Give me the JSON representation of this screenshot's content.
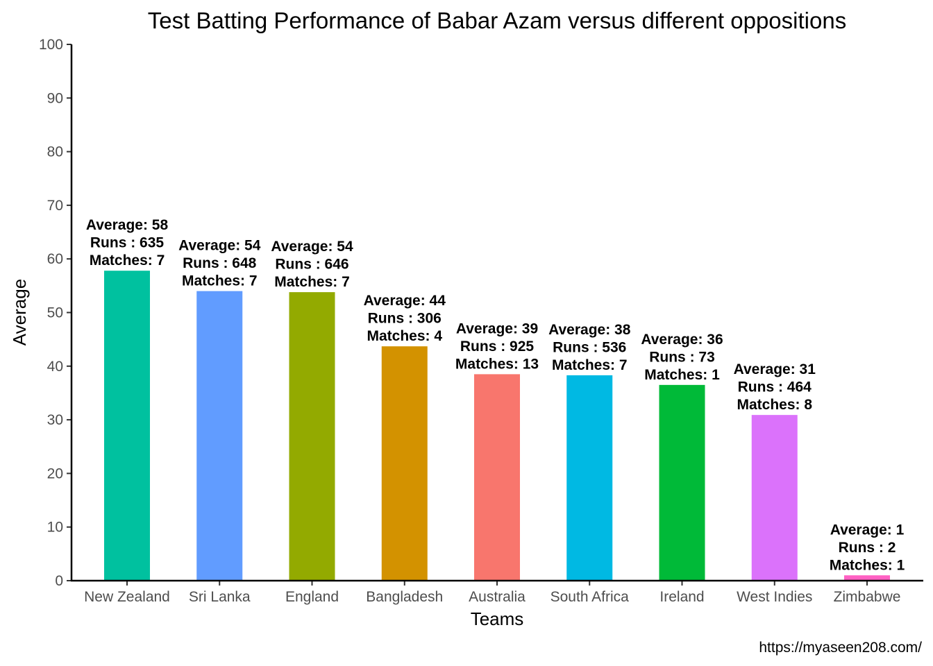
{
  "chart_data": {
    "type": "bar",
    "title": "Test Batting Performance of Babar Azam versus different oppositions",
    "xlabel": "Teams",
    "ylabel": "Average",
    "ylim": [
      0,
      100
    ],
    "yticks": [
      0,
      10,
      20,
      30,
      40,
      50,
      60,
      70,
      80,
      90,
      100
    ],
    "grid": false,
    "legend": "none",
    "categories": [
      "New Zealand",
      "Sri Lanka",
      "England",
      "Bangladesh",
      "Australia",
      "South Africa",
      "Ireland",
      "West Indies",
      "Zimbabwe"
    ],
    "values": [
      57.8,
      54.0,
      53.8,
      43.7,
      38.5,
      38.3,
      36.5,
      30.9,
      1.0
    ],
    "colors": [
      "#00C19F",
      "#619CFF",
      "#93AA00",
      "#D39200",
      "#F8766D",
      "#00B9E3",
      "#00BA38",
      "#DB72FB",
      "#FF61C3"
    ],
    "labels": [
      [
        "Average: 58",
        "Runs   : 635",
        "Matches: 7"
      ],
      [
        "Average: 54",
        "Runs   : 648",
        "Matches: 7"
      ],
      [
        "Average: 54",
        "Runs   : 646",
        "Matches: 7"
      ],
      [
        "Average: 44",
        "Runs   : 306",
        "Matches: 4"
      ],
      [
        "Average: 39",
        "Runs   : 925",
        "Matches: 13"
      ],
      [
        "Average: 38",
        "Runs   : 536",
        "Matches: 7"
      ],
      [
        "Average: 36",
        "Runs   : 73",
        "Matches: 1"
      ],
      [
        "Average: 31",
        "Runs   : 464",
        "Matches: 8"
      ],
      [
        "Average: 1",
        "Runs   : 2",
        "Matches: 1"
      ]
    ],
    "caption": "https://myaseen208.com/"
  }
}
